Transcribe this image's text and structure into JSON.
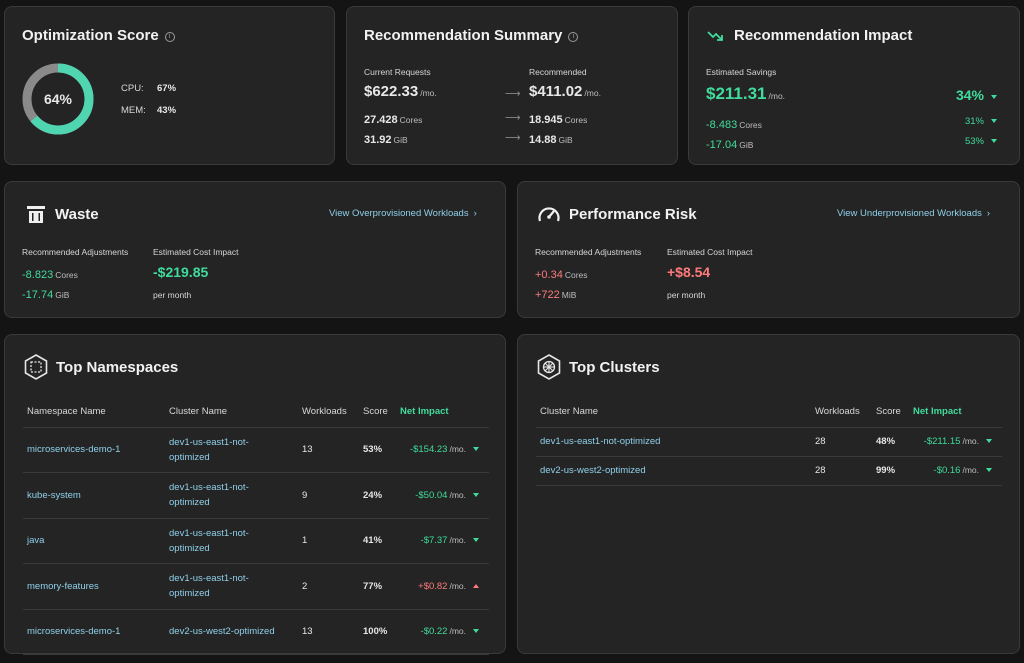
{
  "optimization": {
    "title": "Optimization Score",
    "score": "64%",
    "score_value": 64,
    "cpu_label": "CPU:",
    "cpu_value": "67%",
    "mem_label": "MEM:",
    "mem_value": "43%"
  },
  "summary": {
    "title": "Recommendation Summary",
    "current_label": "Current Requests",
    "recommended_label": "Recommended",
    "current_cost": "$622.33",
    "current_cost_unit": "/mo.",
    "rec_cost": "$411.02",
    "rec_cost_unit": "/mo.",
    "current_cores": "27.428",
    "current_cores_unit": "Cores",
    "rec_cores": "18.945",
    "rec_cores_unit": "Cores",
    "current_mem": "31.92",
    "current_mem_unit": "GiB",
    "rec_mem": "14.88",
    "rec_mem_unit": "GiB",
    "arrow": "⟶"
  },
  "impact": {
    "title": "Recommendation Impact",
    "savings_label": "Estimated Savings",
    "savings": "$211.31",
    "savings_unit": "/mo.",
    "savings_pct": "34%",
    "cores": "-8.483",
    "cores_unit": "Cores",
    "cores_pct": "31%",
    "mem": "-17.04",
    "mem_unit": "GiB",
    "mem_pct": "53%"
  },
  "waste": {
    "title": "Waste",
    "link": "View Overprovisioned Workloads",
    "adj_label": "Recommended Adjustments",
    "cost_label": "Estimated Cost Impact",
    "cores": "-8.823",
    "cores_unit": "Cores",
    "mem": "-17.74",
    "mem_unit": "GiB",
    "cost": "-$219.85",
    "per": "per month"
  },
  "risk": {
    "title": "Performance Risk",
    "link": "View Underprovisioned Workloads",
    "adj_label": "Recommended Adjustments",
    "cost_label": "Estimated Cost Impact",
    "cores": "+0.34",
    "cores_unit": "Cores",
    "mem": "+722",
    "mem_unit": "MiB",
    "cost": "+$8.54",
    "per": "per month"
  },
  "namespaces": {
    "title": "Top Namespaces",
    "headers": [
      "Namespace Name",
      "Cluster Name",
      "Workloads",
      "Score",
      "Net Impact"
    ],
    "rows": [
      {
        "ns": "microservices-demo-1",
        "cluster": "dev1-us-east1-not-optimized",
        "workloads": "13",
        "score": "53%",
        "impact": "-$154.23",
        "unit": "/mo.",
        "dir": "down"
      },
      {
        "ns": "kube-system",
        "cluster": "dev1-us-east1-not-optimized",
        "workloads": "9",
        "score": "24%",
        "impact": "-$50.04",
        "unit": "/mo.",
        "dir": "down"
      },
      {
        "ns": "java",
        "cluster": "dev1-us-east1-not-optimized",
        "workloads": "1",
        "score": "41%",
        "impact": "-$7.37",
        "unit": "/mo.",
        "dir": "down"
      },
      {
        "ns": "memory-features",
        "cluster": "dev1-us-east1-not-optimized",
        "workloads": "2",
        "score": "77%",
        "impact": "+$0.82",
        "unit": "/mo.",
        "dir": "up"
      },
      {
        "ns": "microservices-demo-1",
        "cluster": "dev2-us-west2-optimized",
        "workloads": "13",
        "score": "100%",
        "impact": "-$0.22",
        "unit": "/mo.",
        "dir": "down"
      }
    ]
  },
  "clusters": {
    "title": "Top Clusters",
    "headers": [
      "Cluster Name",
      "Workloads",
      "Score",
      "Net Impact"
    ],
    "rows": [
      {
        "cluster": "dev1-us-east1-not-optimized",
        "workloads": "28",
        "score": "48%",
        "impact": "-$211.15",
        "unit": "/mo.",
        "dir": "down"
      },
      {
        "cluster": "dev2-us-west2-optimized",
        "workloads": "28",
        "score": "99%",
        "impact": "-$0.16",
        "unit": "/mo.",
        "dir": "down"
      }
    ]
  },
  "colors": {
    "accent_green": "#3fdc9c",
    "accent_red": "#ff7b7b",
    "link_blue": "#8fd0ea",
    "card_bg": "#242424",
    "page_bg": "#141414"
  }
}
